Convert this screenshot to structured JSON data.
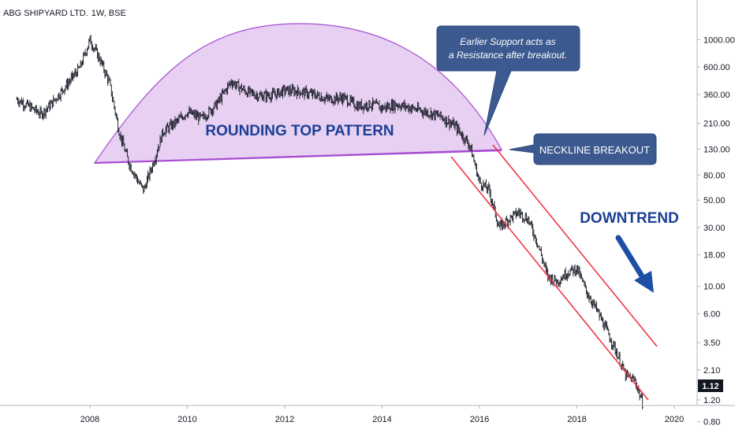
{
  "chart_data": {
    "type": "line",
    "title": "ABG SHIPYARD LTD.",
    "title_suffix": "1W, BSE",
    "y_scale": "log",
    "xlabel": "",
    "ylabel": "",
    "x_ticks": [
      "2008",
      "2010",
      "2012",
      "2014",
      "2016",
      "2018",
      "2020"
    ],
    "y_ticks": [
      "1000.00",
      "600.00",
      "360.00",
      "210.00",
      "130.00",
      "80.00",
      "50.00",
      "30.00",
      "18.00",
      "10.00",
      "6.00",
      "3.50",
      "2.10",
      "1.20",
      "0.80"
    ],
    "last_price": "1.12",
    "grid": false,
    "colors": {
      "candles": "#131722",
      "dome_fill": "#e3c8ef",
      "dome_stroke": "#a64dd1",
      "neckline": "#a64dd1",
      "channel": "#f23645",
      "callout": "#3c5a8f",
      "annotation_text": "#1c3f95",
      "arrow": "#1c4ea3",
      "price_label": "#131722"
    },
    "series": [
      {
        "x": [
          2006.5,
          2006.8,
          2007.0,
          2007.2,
          2007.5,
          2007.8,
          2008.0,
          2008.2,
          2008.4,
          2008.6,
          2008.8,
          2009.0,
          2009.1,
          2009.3,
          2009.5,
          2009.8,
          2010.0,
          2010.3,
          2010.6,
          2010.9,
          2011.2,
          2011.5,
          2011.8,
          2012.0,
          2012.3,
          2012.6,
          2012.9,
          2013.2,
          2013.5,
          2013.8,
          2014.0,
          2014.3,
          2014.6,
          2014.9,
          2015.2,
          2015.5,
          2015.8,
          2016.0,
          2016.2,
          2016.4,
          2016.6,
          2016.8,
          2017.0,
          2017.2,
          2017.4,
          2017.6,
          2017.8,
          2018.0,
          2018.2,
          2018.4,
          2018.6,
          2018.8,
          2019.0,
          2019.2,
          2019.35
        ],
        "values": [
          330,
          280,
          250,
          300,
          420,
          600,
          1000,
          700,
          450,
          180,
          100,
          70,
          60,
          100,
          180,
          220,
          260,
          230,
          300,
          460,
          380,
          350,
          360,
          390,
          380,
          360,
          330,
          340,
          290,
          300,
          280,
          300,
          280,
          260,
          240,
          200,
          140,
          70,
          60,
          30,
          35,
          40,
          35,
          22,
          12,
          11,
          13,
          14,
          9,
          6.5,
          4.5,
          3,
          1.9,
          1.7,
          1.12
        ]
      }
    ]
  },
  "annotations": {
    "pattern_label": "ROUNDING TOP PATTERN",
    "downtrend_label": "DOWNTREND",
    "callout_support_line1": "Earlier Support acts as",
    "callout_support_line2": "a Resistance after breakout.",
    "callout_neckline": "NECKLINE BREAKOUT"
  }
}
